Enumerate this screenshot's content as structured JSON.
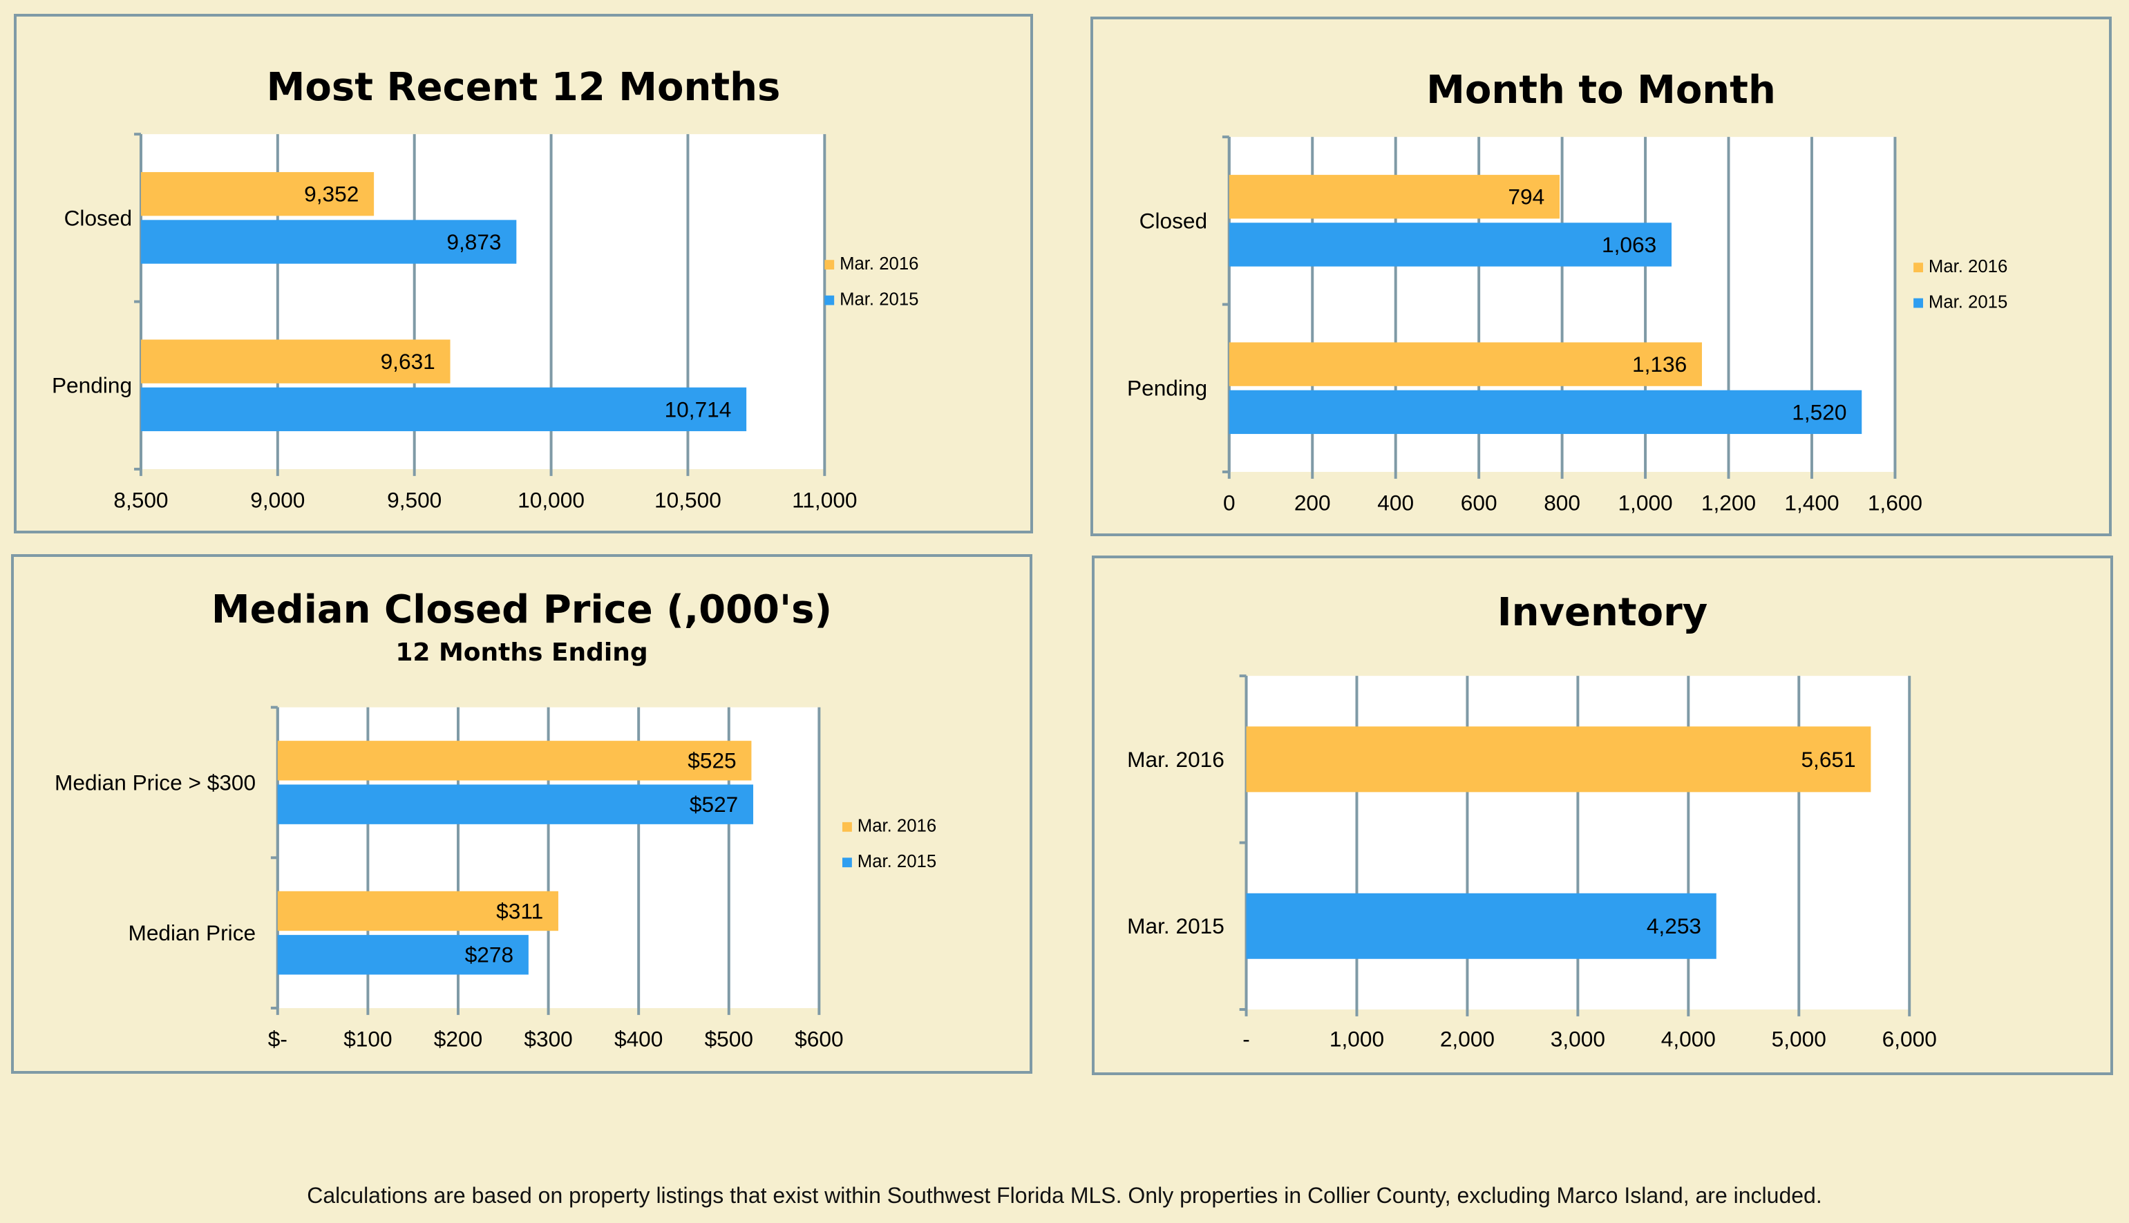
{
  "colors": {
    "mar2016": "#fec04d",
    "mar2015": "#2f9ef0",
    "grid": "#7f9aa6",
    "plot_bg": "#ffffff"
  },
  "footnote": "Calculations are based on property listings that exist within Southwest Florida MLS. Only properties in Collier County, excluding Marco Island, are included.",
  "chart_data": [
    {
      "id": "recent12",
      "type": "bar",
      "orientation": "horizontal",
      "title": "Most Recent 12 Months",
      "subtitle": "",
      "categories": [
        "Closed",
        "Pending"
      ],
      "series": [
        {
          "name": "Mar. 2016",
          "values": [
            9352,
            9631
          ],
          "labels": [
            "9,352",
            "9,631"
          ]
        },
        {
          "name": "Mar. 2015",
          "values": [
            9873,
            10714
          ],
          "labels": [
            "9,873",
            "10,714"
          ]
        }
      ],
      "xlim": [
        8500,
        11000
      ],
      "xticks": [
        "8,500",
        "9,000",
        "9,500",
        "10,000",
        "10,500",
        "11,000"
      ],
      "legend": "right",
      "grid": true
    },
    {
      "id": "monthtomonth",
      "type": "bar",
      "orientation": "horizontal",
      "title": "Month to Month",
      "subtitle": "",
      "categories": [
        "Closed",
        "Pending"
      ],
      "series": [
        {
          "name": "Mar. 2016",
          "values": [
            794,
            1136
          ],
          "labels": [
            "794",
            "1,136"
          ]
        },
        {
          "name": "Mar. 2015",
          "values": [
            1063,
            1520
          ],
          "labels": [
            "1,063",
            "1,520"
          ]
        }
      ],
      "xlim": [
        0,
        1600
      ],
      "xticks": [
        "0",
        "200",
        "400",
        "600",
        "800",
        "1,000",
        "1,200",
        "1,400",
        "1,600"
      ],
      "legend": "right",
      "grid": true
    },
    {
      "id": "medianprice",
      "type": "bar",
      "orientation": "horizontal",
      "title": "Median Closed Price (,000's)",
      "subtitle": "12 Months Ending",
      "categories": [
        "Median Price > $300",
        "Median Price"
      ],
      "series": [
        {
          "name": "Mar. 2016",
          "values": [
            525,
            311
          ],
          "labels": [
            "$525",
            "$311"
          ]
        },
        {
          "name": "Mar. 2015",
          "values": [
            527,
            278
          ],
          "labels": [
            "$527",
            "$278"
          ]
        }
      ],
      "xlim": [
        0,
        600
      ],
      "xticks": [
        "$-",
        "$100",
        "$200",
        "$300",
        "$400",
        "$500",
        "$600"
      ],
      "legend": "right",
      "grid": true
    },
    {
      "id": "inventory",
      "type": "bar",
      "orientation": "horizontal",
      "title": "Inventory",
      "subtitle": "",
      "categories": [
        "Mar. 2016",
        "Mar. 2015"
      ],
      "series": [
        {
          "name": "Inventory",
          "values": [
            5651,
            4253
          ],
          "labels": [
            "5,651",
            "4,253"
          ],
          "colors": [
            "#fec04d",
            "#2f9ef0"
          ]
        }
      ],
      "xlim": [
        0,
        6000
      ],
      "xticks": [
        "-",
        "1,000",
        "2,000",
        "3,000",
        "4,000",
        "5,000",
        "6,000"
      ],
      "legend": "none",
      "grid": true
    }
  ]
}
